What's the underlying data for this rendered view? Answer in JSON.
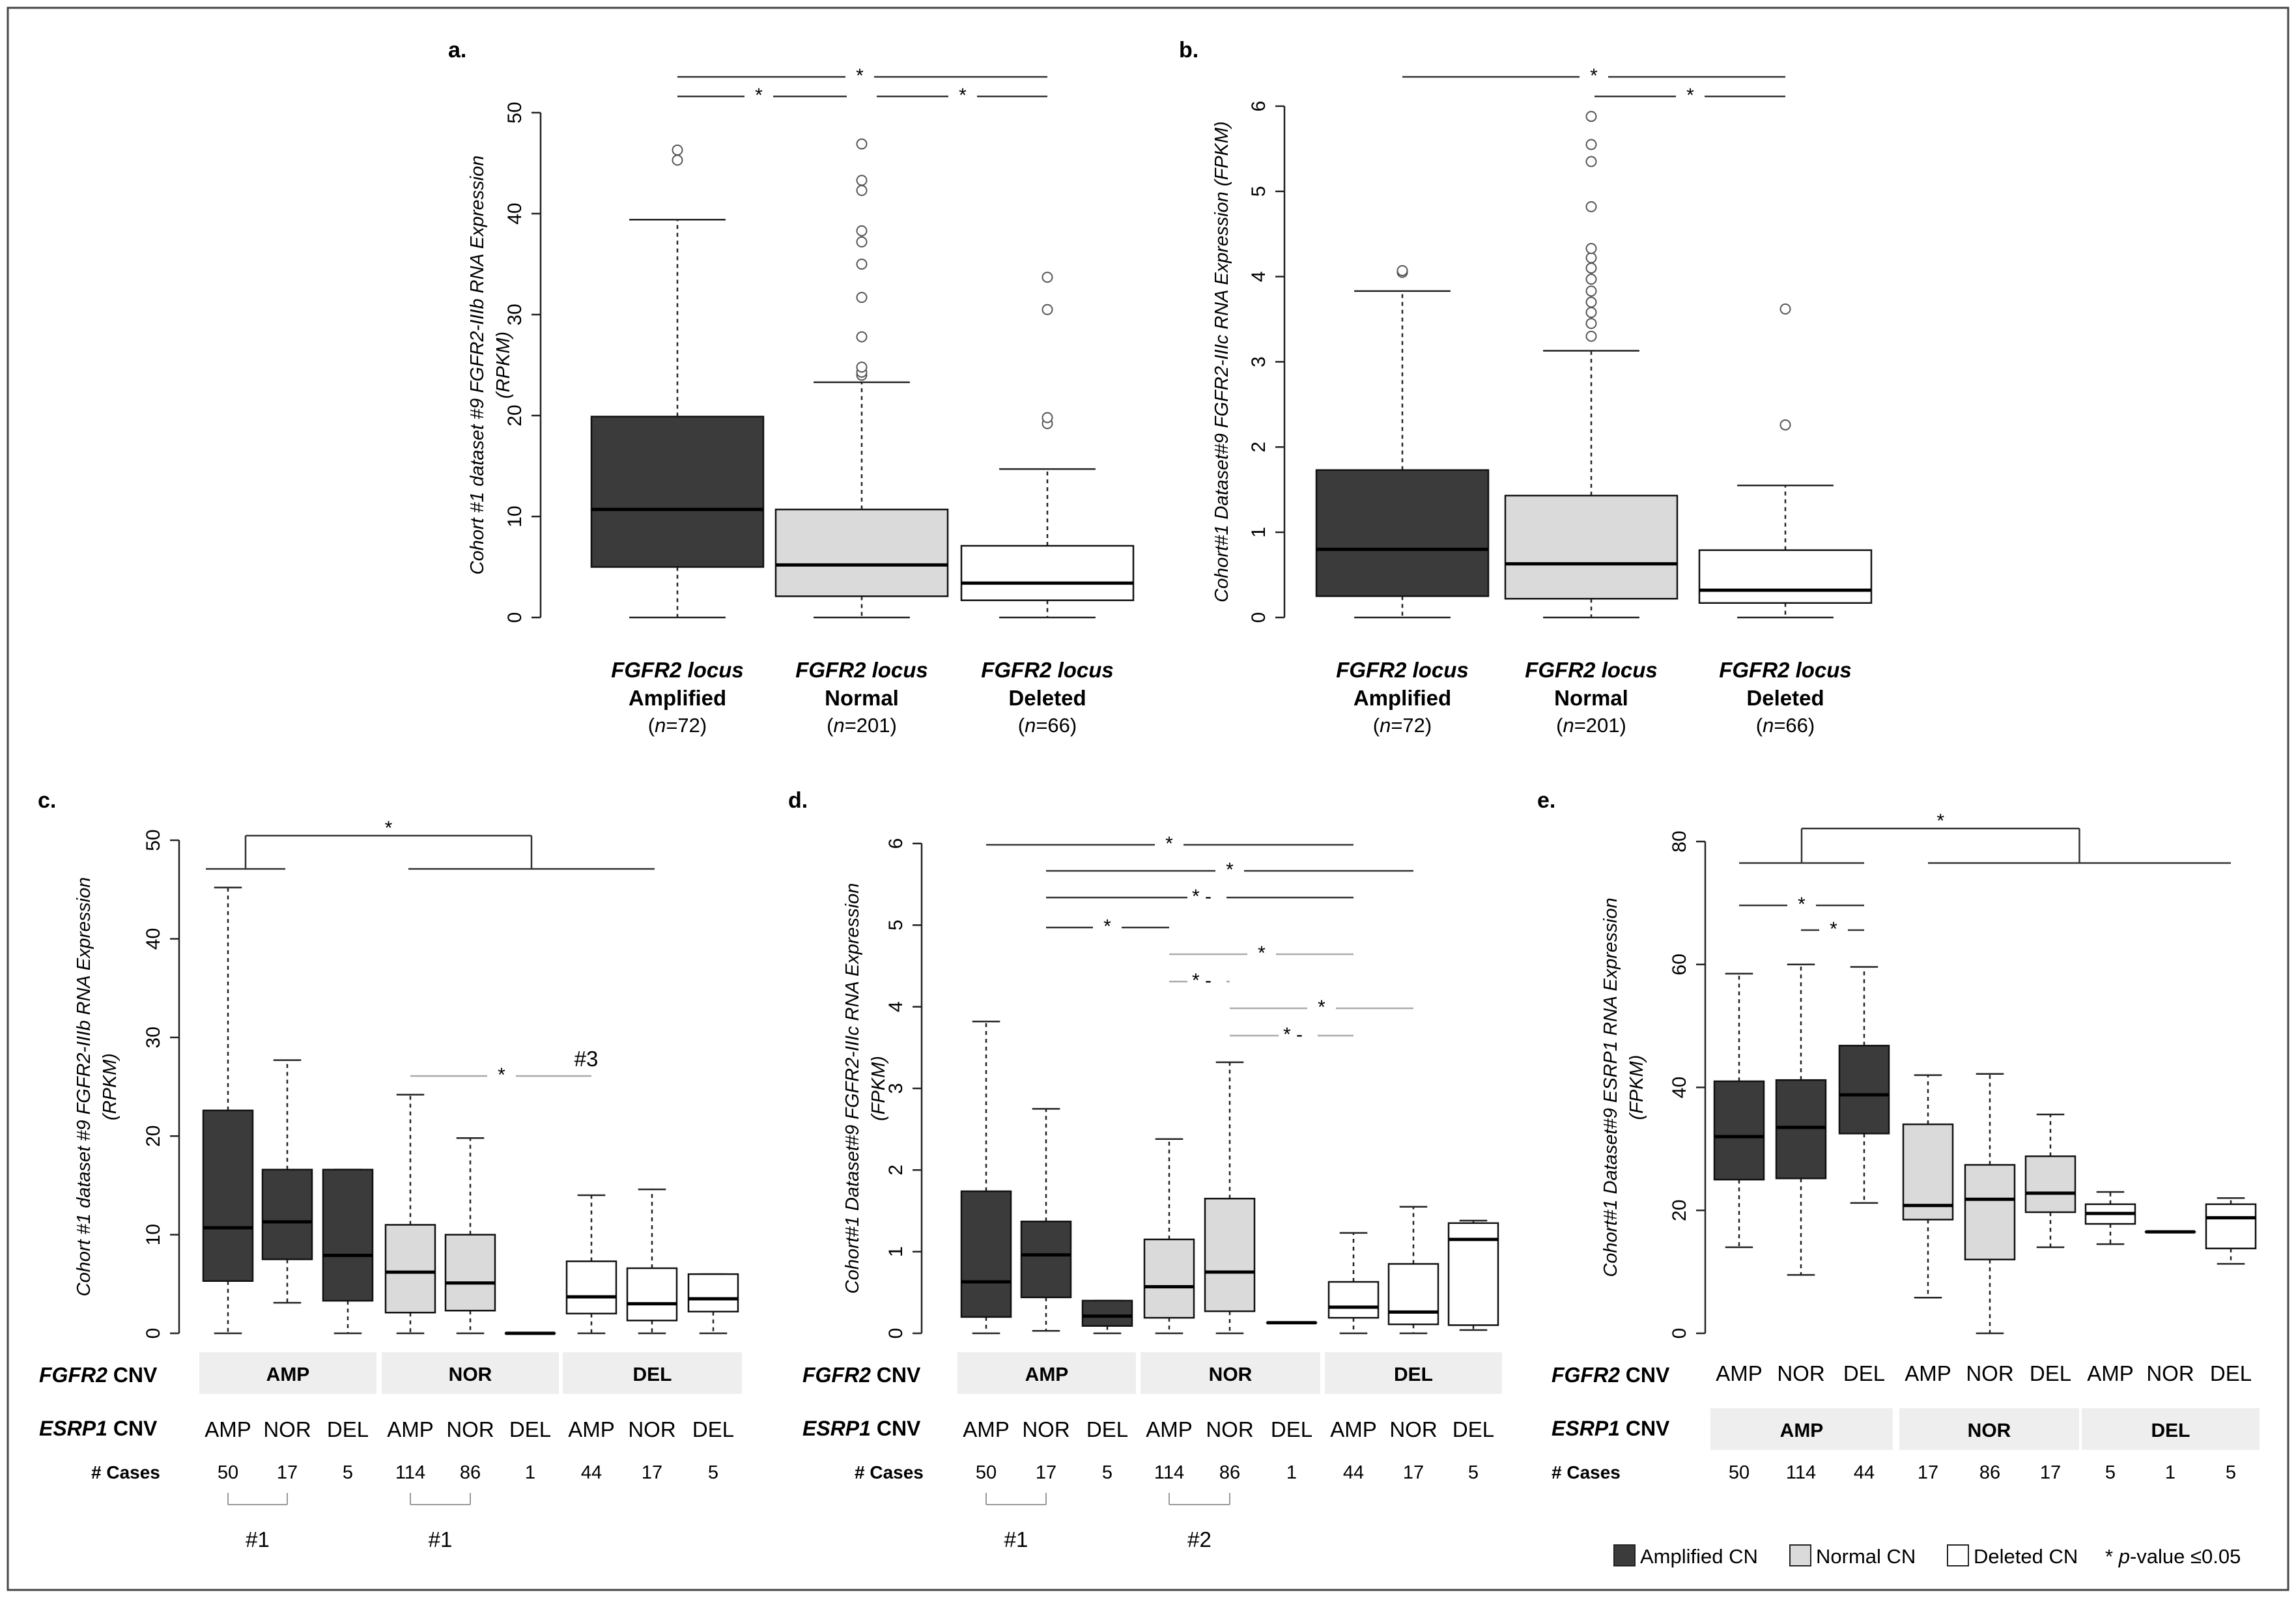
{
  "colors": {
    "amp": "#3b3b3b",
    "nor": "#dadada",
    "del": "#ffffff",
    "band": "#eeeeee",
    "grey": "#999999"
  },
  "chart_data": [
    {
      "id": "a",
      "type": "boxplot",
      "panel_label": "a.",
      "ylabel_line1": "Cohort #1 dataset #9 FGFR2-IIIb RNA Expression",
      "ylabel_line2": "(RPKM)",
      "ylim": [
        0,
        50
      ],
      "yticks": [
        0,
        10,
        20,
        30,
        40,
        50
      ],
      "groups": [
        {
          "italic": "FGFR2 locus",
          "bold": "Amplified",
          "n_prefix": "n",
          "n_text": "=72",
          "class": "amp"
        },
        {
          "italic": "FGFR2 locus",
          "bold": "Normal",
          "n_prefix": "n",
          "n_text": "=201",
          "class": "nor"
        },
        {
          "italic": "FGFR2 locus",
          "bold": "Deleted",
          "n_prefix": "n",
          "n_text": "=66",
          "class": "del"
        }
      ],
      "series": [
        {
          "min": 0,
          "q1": 5,
          "median": 10.7,
          "q3": 19.9,
          "max": 39.4,
          "outliers": [
            45.3,
            46.3
          ]
        },
        {
          "min": 0,
          "q1": 2.1,
          "median": 5.2,
          "q3": 10.7,
          "max": 23.3,
          "outliers": [
            24,
            24.3,
            24.8,
            27.8,
            31.7,
            35,
            37.2,
            38.3,
            42.3,
            43.3,
            46.9
          ]
        },
        {
          "min": 0,
          "q1": 1.7,
          "median": 3.4,
          "q3": 7.1,
          "max": 14.7,
          "outliers": [
            19.2,
            19.8,
            30.5,
            33.7
          ]
        }
      ],
      "annotations": [
        {
          "text": "*",
          "grey": false
        },
        {
          "text": "*",
          "grey": false
        },
        {
          "text": "*",
          "grey": false
        }
      ]
    },
    {
      "id": "b",
      "type": "boxplot",
      "panel_label": "b.",
      "ylabel_line1": "Cohort#1 Dataset#9 FGFR2-IIIc RNA Expression (FPKM)",
      "ylabel_line2": "",
      "ylim": [
        0,
        6
      ],
      "yticks": [
        0,
        1,
        2,
        3,
        4,
        5,
        6
      ],
      "groups": [
        {
          "italic": "FGFR2 locus",
          "bold": "Amplified",
          "n_prefix": "n",
          "n_text": "=72",
          "class": "amp"
        },
        {
          "italic": "FGFR2 locus",
          "bold": "Normal",
          "n_prefix": "n",
          "n_text": "=201",
          "class": "nor"
        },
        {
          "italic": "FGFR2 locus",
          "bold": "Deleted",
          "n_prefix": "n",
          "n_text": "=66",
          "class": "del"
        }
      ],
      "series": [
        {
          "min": 0,
          "q1": 0.25,
          "median": 0.8,
          "q3": 1.73,
          "max": 3.83,
          "outliers": [
            4.05,
            4.07
          ]
        },
        {
          "min": 0,
          "q1": 0.22,
          "median": 0.63,
          "q3": 1.43,
          "max": 3.13,
          "outliers": [
            3.3,
            3.45,
            3.58,
            3.7,
            3.83,
            3.97,
            4.1,
            4.22,
            4.33,
            4.82,
            5.35,
            5.55,
            5.88
          ]
        },
        {
          "min": 0,
          "q1": 0.17,
          "median": 0.32,
          "q3": 0.79,
          "max": 1.55,
          "outliers": [
            2.26,
            3.62
          ]
        }
      ],
      "annotations": [
        {
          "text": "*",
          "grey": false
        },
        {
          "text": "*",
          "grey": false
        }
      ]
    },
    {
      "id": "c",
      "type": "boxplot",
      "panel_label": "c.",
      "ylabel_line1": "Cohort #1 dataset #9 FGFR2-IIIb RNA Expression",
      "ylabel_line2": "(RPKM)",
      "ylim": [
        0,
        50
      ],
      "yticks": [
        0,
        10,
        20,
        30,
        40,
        50
      ],
      "row_labels": {
        "fgfr2_gene": "FGFR2",
        "fgfr2_suffix": " CNV",
        "esrp1_gene": "ESRP1",
        "esrp1_suffix": " CNV",
        "cases": "# Cases"
      },
      "fgfr2_bands": [
        "AMP",
        "NOR",
        "DEL"
      ],
      "esrp1_labels": [
        "AMP",
        "NOR",
        "DEL",
        "AMP",
        "NOR",
        "DEL",
        "AMP",
        "NOR",
        "DEL"
      ],
      "cases": [
        "50",
        "17",
        "5",
        "114",
        "86",
        "1",
        "44",
        "17",
        "5"
      ],
      "brackets": [
        "#1",
        "#1"
      ],
      "extra_labels": [
        "#3"
      ],
      "series": [
        {
          "min": 0,
          "q1": 5.3,
          "median": 10.7,
          "q3": 22.6,
          "max": 45.2,
          "outliers": []
        },
        {
          "min": 3.1,
          "q1": 7.5,
          "median": 11.3,
          "q3": 16.6,
          "max": 27.7,
          "outliers": []
        },
        {
          "min": 0,
          "q1": 3.3,
          "median": 7.9,
          "q3": 16.6,
          "max": 16.6,
          "outliers": []
        },
        {
          "min": 0,
          "q1": 2.1,
          "median": 6.2,
          "q3": 11,
          "max": 24.2,
          "outliers": []
        },
        {
          "min": 0,
          "q1": 2.3,
          "median": 5.1,
          "q3": 10,
          "max": 19.8,
          "outliers": []
        },
        {
          "min": 0,
          "q1": 0,
          "median": 0,
          "q3": 0,
          "max": 0,
          "outliers": []
        },
        {
          "min": 0,
          "q1": 2,
          "median": 3.7,
          "q3": 7.3,
          "max": 14,
          "outliers": []
        },
        {
          "min": 0,
          "q1": 1.3,
          "median": 3,
          "q3": 6.6,
          "max": 14.6,
          "outliers": []
        },
        {
          "min": 0,
          "q1": 2.2,
          "median": 3.5,
          "q3": 6,
          "max": 6,
          "outliers": []
        }
      ],
      "annotations": [
        {
          "text": "*",
          "grey": false
        },
        {
          "text": "*",
          "grey": true
        }
      ]
    },
    {
      "id": "d",
      "type": "boxplot",
      "panel_label": "d.",
      "ylabel_line1": "Cohort#1 Dataset#9 FGFR2-IIIc RNA Expression",
      "ylabel_line2": "(FPKM)",
      "ylim": [
        0,
        6
      ],
      "yticks": [
        0,
        1,
        2,
        3,
        4,
        5,
        6
      ],
      "row_labels": {
        "fgfr2_gene": "FGFR2",
        "fgfr2_suffix": " CNV",
        "esrp1_gene": "ESRP1",
        "esrp1_suffix": " CNV",
        "cases": "# Cases"
      },
      "fgfr2_bands": [
        "AMP",
        "NOR",
        "DEL"
      ],
      "esrp1_labels": [
        "AMP",
        "NOR",
        "DEL",
        "AMP",
        "NOR",
        "DEL",
        "AMP",
        "NOR",
        "DEL"
      ],
      "cases": [
        "50",
        "17",
        "5",
        "114",
        "86",
        "1",
        "44",
        "17",
        "5"
      ],
      "brackets": [
        "#1",
        "#2"
      ],
      "extra_labels": [],
      "series": [
        {
          "min": 0,
          "q1": 0.2,
          "median": 0.63,
          "q3": 1.74,
          "max": 3.82,
          "outliers": []
        },
        {
          "min": 0.03,
          "q1": 0.44,
          "median": 0.96,
          "q3": 1.37,
          "max": 2.75,
          "outliers": []
        },
        {
          "min": 0,
          "q1": 0.09,
          "median": 0.21,
          "q3": 0.4,
          "max": 0.4,
          "outliers": []
        },
        {
          "min": 0,
          "q1": 0.19,
          "median": 0.57,
          "q3": 1.15,
          "max": 2.38,
          "outliers": []
        },
        {
          "min": 0,
          "q1": 0.27,
          "median": 0.75,
          "q3": 1.65,
          "max": 3.32,
          "outliers": []
        },
        {
          "min": 0.13,
          "q1": 0.13,
          "median": 0.13,
          "q3": 0.13,
          "max": 0.13,
          "outliers": []
        },
        {
          "min": 0,
          "q1": 0.19,
          "median": 0.32,
          "q3": 0.63,
          "max": 1.23,
          "outliers": []
        },
        {
          "min": 0,
          "q1": 0.11,
          "median": 0.26,
          "q3": 0.85,
          "max": 1.55,
          "outliers": []
        },
        {
          "min": 0.04,
          "q1": 0.1,
          "median": 1.15,
          "q3": 1.35,
          "max": 1.38,
          "outliers": []
        }
      ],
      "annotations": [
        {
          "text": "*",
          "grey": false
        },
        {
          "text": "*",
          "grey": false
        },
        {
          "text": "* -",
          "grey": false
        },
        {
          "text": "*",
          "grey": false
        },
        {
          "text": "*",
          "grey": true
        },
        {
          "text": "* -",
          "grey": true
        },
        {
          "text": "*",
          "grey": true
        },
        {
          "text": "* -",
          "grey": true
        }
      ]
    },
    {
      "id": "e",
      "type": "boxplot",
      "panel_label": "e.",
      "ylabel_line1": "Cohort#1 Dataset#9 ESRP1 RNA Expression",
      "ylabel_line2": "(FPKM)",
      "ylim": [
        0,
        80
      ],
      "yticks": [
        0,
        20,
        40,
        60,
        80
      ],
      "row_labels": {
        "fgfr2_gene": "FGFR2",
        "fgfr2_suffix": " CNV",
        "esrp1_gene": "ESRP1",
        "esrp1_suffix": " CNV",
        "cases": "# Cases"
      },
      "fgfr2_labels": [
        "AMP",
        "NOR",
        "DEL",
        "AMP",
        "NOR",
        "DEL",
        "AMP",
        "NOR",
        "DEL"
      ],
      "esrp1_bands": [
        "AMP",
        "NOR",
        "DEL"
      ],
      "cases": [
        "50",
        "114",
        "44",
        "17",
        "86",
        "17",
        "5",
        "1",
        "5"
      ],
      "series": [
        {
          "min": 14,
          "q1": 25,
          "median": 32,
          "q3": 41,
          "max": 58.5,
          "outliers": []
        },
        {
          "min": 9.5,
          "q1": 25.2,
          "median": 33.5,
          "q3": 41.2,
          "max": 60,
          "outliers": []
        },
        {
          "min": 21.2,
          "q1": 32.5,
          "median": 38.8,
          "q3": 46.8,
          "max": 59.6,
          "outliers": []
        },
        {
          "min": 5.8,
          "q1": 18.5,
          "median": 20.8,
          "q3": 34,
          "max": 42,
          "outliers": []
        },
        {
          "min": 0,
          "q1": 12,
          "median": 21.8,
          "q3": 27.4,
          "max": 42.2,
          "outliers": []
        },
        {
          "min": 14,
          "q1": 19.7,
          "median": 22.8,
          "q3": 28.8,
          "max": 35.6,
          "outliers": []
        },
        {
          "min": 14.5,
          "q1": 17.8,
          "median": 19.5,
          "q3": 21,
          "max": 23,
          "outliers": []
        },
        {
          "min": 16.5,
          "q1": 16.5,
          "median": 16.5,
          "q3": 16.5,
          "max": 16.5,
          "outliers": []
        },
        {
          "min": 11.3,
          "q1": 13.8,
          "median": 18.8,
          "q3": 21,
          "max": 22,
          "outliers": []
        }
      ],
      "annotations": [
        {
          "text": "*",
          "grey": false
        },
        {
          "text": "*",
          "grey": false
        },
        {
          "text": "*",
          "grey": false
        }
      ]
    }
  ],
  "legend": {
    "items": [
      {
        "label": "Amplified CN",
        "class": "amp"
      },
      {
        "label": "Normal CN",
        "class": "nor"
      },
      {
        "label": "Deleted CN",
        "class": "del"
      }
    ],
    "pvalue_star": "* ",
    "pvalue_italic": "p",
    "pvalue_rest": "-value ≤0.05"
  }
}
